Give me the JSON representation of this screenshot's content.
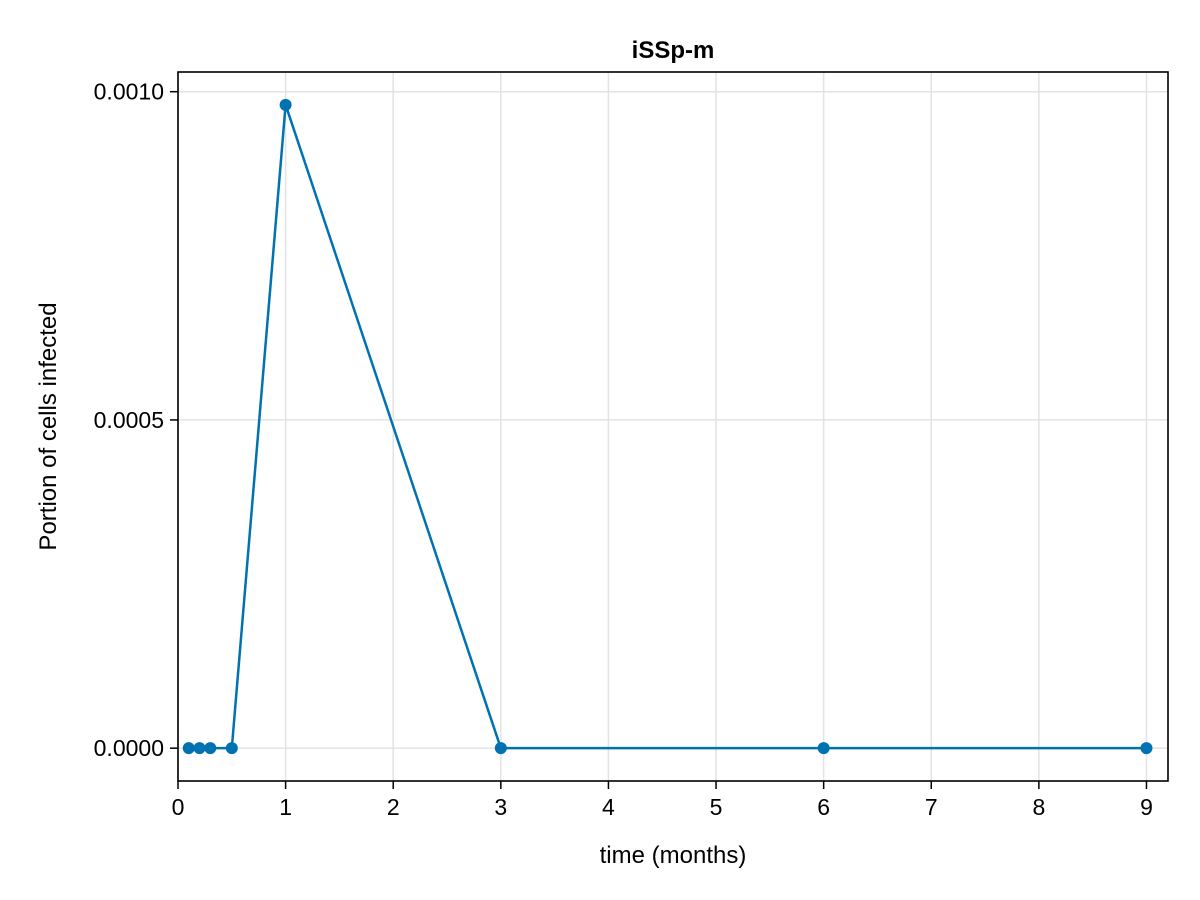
{
  "chart_data": {
    "type": "line",
    "title": "iSSp-m",
    "xlabel": "time (months)",
    "ylabel": "Portion of cells infected",
    "xlim": [
      0,
      9.2
    ],
    "ylim": [
      -5e-05,
      0.00103
    ],
    "x_ticks": [
      0,
      1,
      2,
      3,
      4,
      5,
      6,
      7,
      8,
      9
    ],
    "x_tick_labels": [
      "0",
      "1",
      "2",
      "3",
      "4",
      "5",
      "6",
      "7",
      "8",
      "9"
    ],
    "y_ticks": [
      0,
      0.0005,
      0.001
    ],
    "y_tick_labels": [
      "0.0000",
      "0.0005",
      "0.0010"
    ],
    "grid": true,
    "series": [
      {
        "color": "#0072b2",
        "markers": true,
        "x": [
          0.1,
          0.2,
          0.3,
          0.5,
          1,
          3,
          6,
          9
        ],
        "y": [
          0,
          0,
          0,
          0,
          0.00098,
          0,
          0,
          0
        ]
      }
    ]
  }
}
